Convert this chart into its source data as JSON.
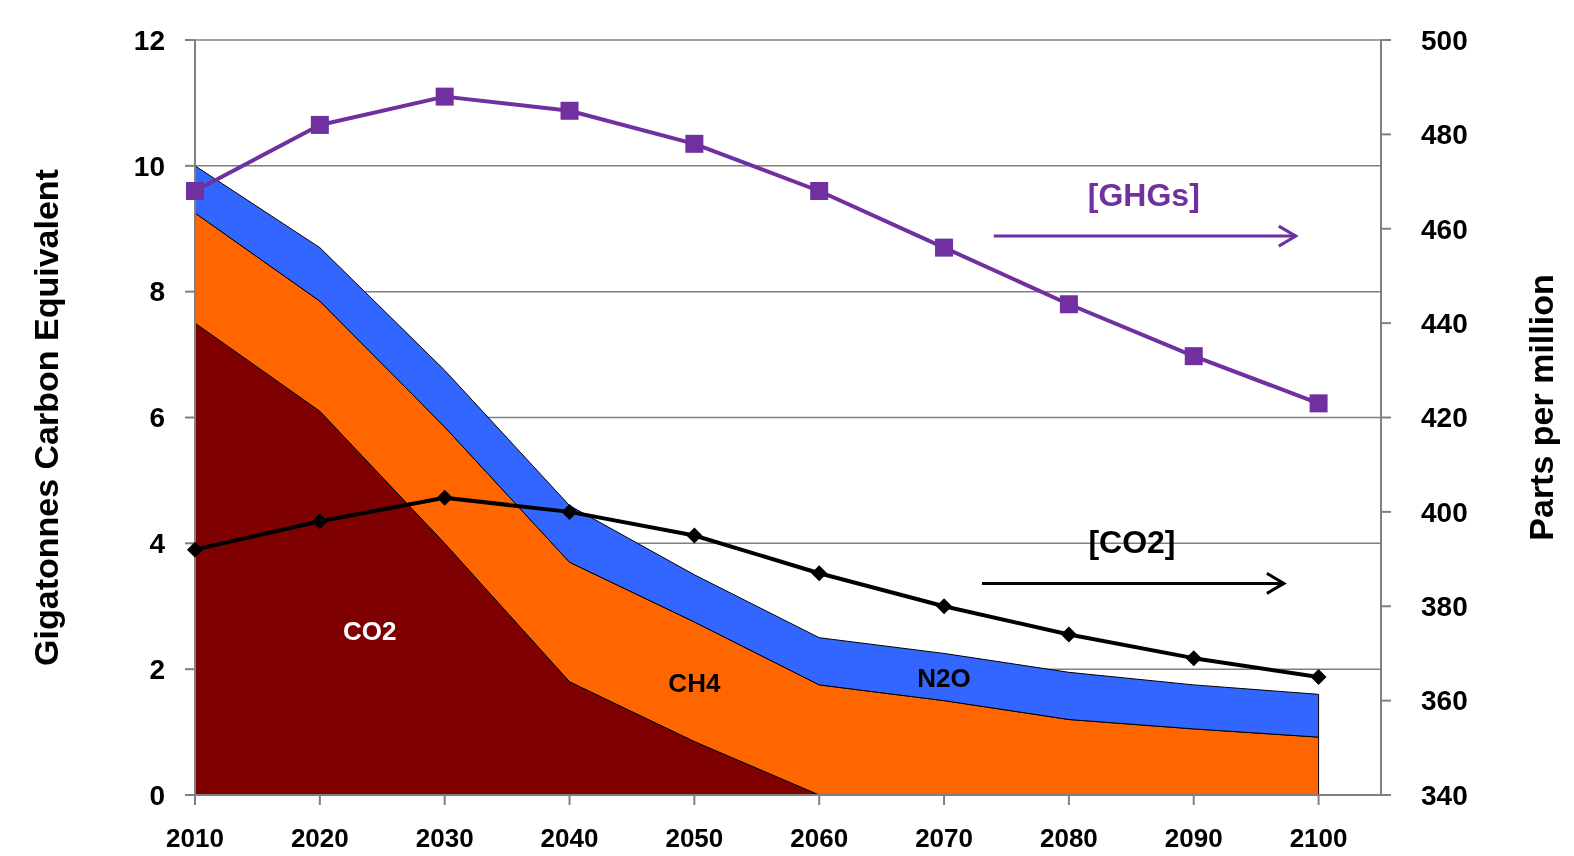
{
  "chart_data": {
    "type": "area",
    "stacked": true,
    "ylabel": "Gigatonnes Carbon Equivalent",
    "y2label": "Parts per million",
    "x": [
      2010,
      2020,
      2030,
      2040,
      2050,
      2060,
      2070,
      2080,
      2090,
      2100
    ],
    "xlim": [
      2010,
      2105
    ],
    "xticks": [
      2010,
      2020,
      2030,
      2040,
      2050,
      2060,
      2070,
      2080,
      2090,
      2100
    ],
    "ylim": [
      0,
      12
    ],
    "yticks": [
      0,
      2,
      4,
      6,
      8,
      10,
      12
    ],
    "y2lim": [
      340,
      500
    ],
    "y2ticks": [
      340,
      360,
      380,
      400,
      420,
      440,
      460,
      480,
      500
    ],
    "grid": "y",
    "series": [
      {
        "name": "CO2",
        "color": "#7f0000",
        "values": [
          7.5,
          6.1,
          4.0,
          1.8,
          0.85,
          0,
          0,
          0,
          0,
          0
        ]
      },
      {
        "name": "CH4",
        "color": "#ff6600",
        "values": [
          1.75,
          1.75,
          1.85,
          1.9,
          1.9,
          1.75,
          1.5,
          1.2,
          1.05,
          0.92
        ]
      },
      {
        "name": "N2O",
        "color": "#3366ff",
        "values": [
          0.75,
          0.85,
          0.9,
          0.9,
          0.75,
          0.75,
          0.75,
          0.75,
          0.7,
          0.68
        ]
      },
      {
        "name": "[GHGs]",
        "type": "line",
        "axis": "y2",
        "marker": "square",
        "color": "#7030a0",
        "values": [
          468,
          482,
          488,
          485,
          478,
          468,
          456,
          444,
          433,
          423
        ]
      },
      {
        "name": "[CO2]",
        "type": "line",
        "axis": "y2",
        "marker": "diamond",
        "color": "#000000",
        "values": [
          392,
          398,
          403,
          400,
          395,
          387,
          380,
          374,
          369,
          365
        ]
      }
    ]
  }
}
